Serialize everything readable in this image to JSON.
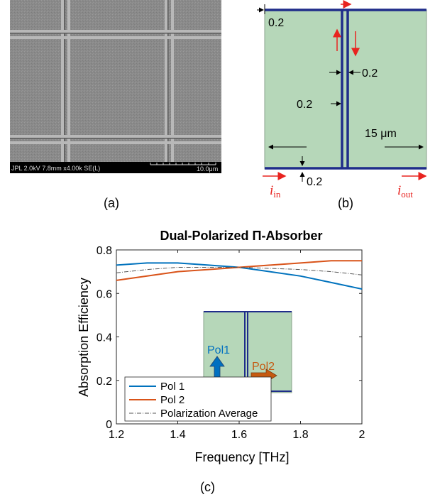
{
  "panels": {
    "a": {
      "label": "(a)",
      "sem_info": "JPL 2.0kV 7.8mm x4.00k SE(L)",
      "scale_label": "10.0μm"
    },
    "b": {
      "label": "(b)",
      "dim_top": "0.2",
      "dim_right": "0.2",
      "dim_left": "0.2",
      "dim_width": "15 μm",
      "dim_bottom": "0.2",
      "label_in": "i",
      "label_in_sub": "in",
      "label_out": "i",
      "label_out_sub": "out",
      "colors": {
        "fill": "#b6d7b9",
        "line": "#1f2d8a",
        "arrow": "#e8231f"
      }
    },
    "c": {
      "label": "(c)"
    }
  },
  "chart_data": {
    "type": "line",
    "title": "Dual-Polarized Π-Absorber",
    "xlabel": "Frequency [THz]",
    "ylabel": "Absorption Efficiency",
    "xlim": [
      1.2,
      2.0
    ],
    "ylim": [
      0,
      0.8
    ],
    "xticks": [
      "1.2",
      "1.4",
      "1.6",
      "1.8",
      "2"
    ],
    "yticks": [
      "0",
      "0.2",
      "0.4",
      "0.6",
      "0.8"
    ],
    "grid": false,
    "legend": "bottom-left",
    "series": [
      {
        "name": "Pol 1",
        "color": "#0072bd",
        "style": "solid",
        "x": [
          1.2,
          1.3,
          1.4,
          1.5,
          1.6,
          1.7,
          1.8,
          1.9,
          2.0
        ],
        "values": [
          0.73,
          0.74,
          0.74,
          0.73,
          0.72,
          0.7,
          0.68,
          0.65,
          0.62
        ]
      },
      {
        "name": "Pol 2",
        "color": "#d95319",
        "style": "solid",
        "x": [
          1.2,
          1.3,
          1.4,
          1.5,
          1.6,
          1.7,
          1.8,
          1.9,
          2.0
        ],
        "values": [
          0.66,
          0.68,
          0.7,
          0.71,
          0.72,
          0.73,
          0.74,
          0.75,
          0.75
        ]
      },
      {
        "name": "Polarization Average",
        "color": "#555555",
        "style": "dashdot",
        "x": [
          1.2,
          1.3,
          1.4,
          1.5,
          1.6,
          1.7,
          1.8,
          1.9,
          2.0
        ],
        "values": [
          0.695,
          0.71,
          0.72,
          0.72,
          0.72,
          0.715,
          0.71,
          0.7,
          0.685
        ]
      }
    ],
    "inset": {
      "pol1_label": "Pol1",
      "pol2_label": "Pol2",
      "pol1_color": "#0070c0",
      "pol2_color": "#c55a11"
    }
  }
}
